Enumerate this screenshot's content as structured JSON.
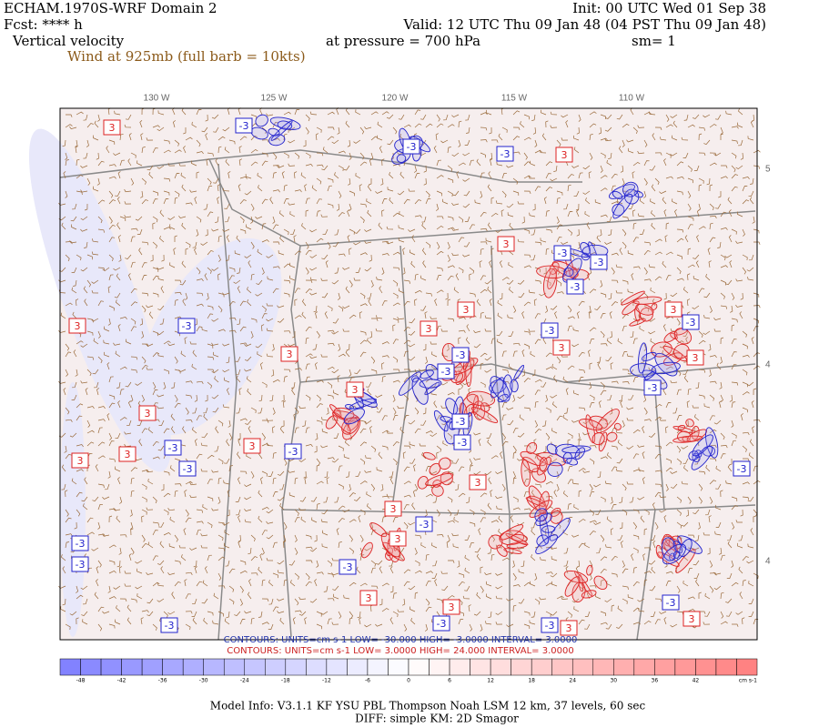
{
  "header": {
    "title": "ECHAM.1970S-WRF Domain 2",
    "forecast": "Fcst: **** h",
    "field": "Vertical velocity",
    "wind": "Wind at 925mb (full barb = 10kts)",
    "init": "Init: 00 UTC Wed 01 Sep 38",
    "valid": "Valid: 12 UTC Thu 09 Jan 48 (04 PST Thu 09 Jan 48)",
    "pressure": "at pressure =  700 hPa",
    "smoothing": "sm= 1"
  },
  "map": {
    "longitude_labels": [
      "130 W",
      "125 W",
      "120 W",
      "115 W",
      "110 W"
    ],
    "latitude_labels": [
      "5",
      "4",
      "4"
    ],
    "contour_label_positive": "3",
    "contour_label_negative": "-3"
  },
  "contours": {
    "negative": "CONTOURS:  UNITS=cm s-1  LOW= -30.000     HIGH= -3.0000     INTERVAL= 3.0000",
    "positive": "CONTOURS:  UNITS=cm s-1  LOW=  3.0000     HIGH=  24.000     INTERVAL= 3.0000"
  },
  "colorbar": {
    "ticks": [
      -48,
      -42,
      -36,
      -30,
      -24,
      -18,
      -12,
      -6,
      0,
      6,
      12,
      18,
      24,
      30,
      36,
      42
    ],
    "unit": "cm s-1"
  },
  "footer": {
    "model_info": "Model Info: V3.1.1     KF       YSU PBL   Thompson      Noah LSM   12 km,     37 levels,     60 sec",
    "diff": "DIFF: simple KM: 2D Smagor"
  }
}
